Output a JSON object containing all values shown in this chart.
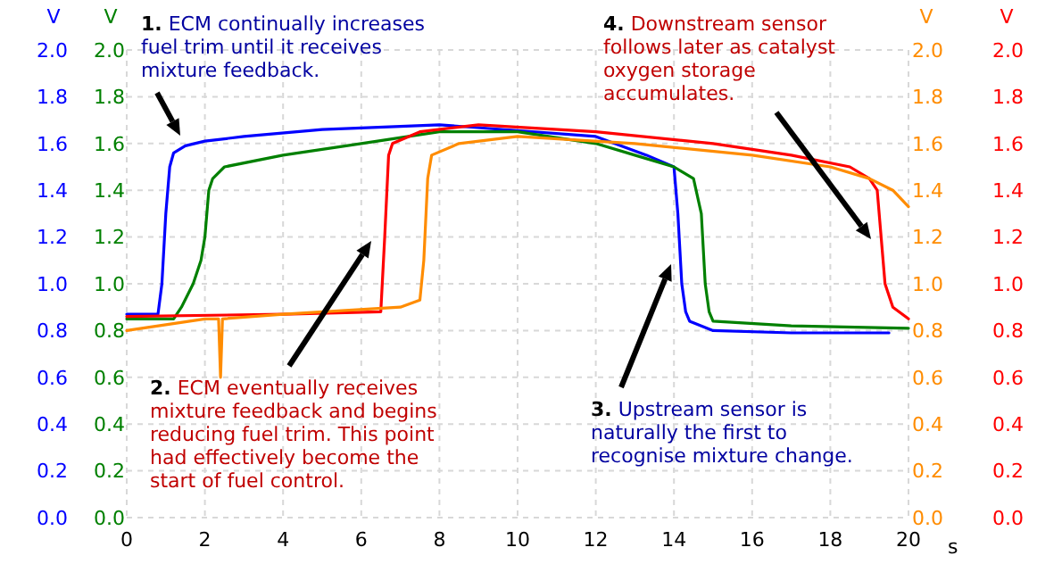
{
  "chart_data": {
    "type": "line",
    "xlabel": "s",
    "ylabel": "V",
    "y2label": "V",
    "y3label": "V",
    "xlim": [
      0,
      20
    ],
    "xticks": [
      0,
      2,
      4,
      6,
      8,
      10,
      12,
      14,
      16,
      18,
      20
    ],
    "ylim": [
      0,
      2
    ],
    "yticks": [
      {
        "value": 0,
        "label": "0.0"
      },
      {
        "value": 0.2,
        "label": "0.2"
      },
      {
        "value": 0.4,
        "label": "0.4"
      },
      {
        "value": 0.6,
        "label": "0.6"
      },
      {
        "value": 0.8,
        "label": "0.8"
      },
      {
        "value": 1,
        "label": "1.0"
      },
      {
        "value": 1.2,
        "label": "1.2"
      },
      {
        "value": 1.4,
        "label": "1.4"
      },
      {
        "value": 1.6,
        "label": "1.6"
      },
      {
        "value": 1.8,
        "label": "1.8"
      },
      {
        "value": 2,
        "label": "2.0"
      }
    ],
    "y2lim": [
      0,
      2
    ],
    "y2ticks": [
      {
        "value": 0,
        "label": "0.0"
      },
      {
        "value": 0.2,
        "label": "0.2"
      },
      {
        "value": 0.4,
        "label": "0.4"
      },
      {
        "value": 0.6,
        "label": "0.6"
      },
      {
        "value": 0.8,
        "label": "0.8"
      },
      {
        "value": 1,
        "label": "1.0"
      },
      {
        "value": 1.2,
        "label": "1.2"
      },
      {
        "value": 1.4,
        "label": "1.4"
      },
      {
        "value": 1.6,
        "label": "1.6"
      },
      {
        "value": 1.8,
        "label": "1.8"
      },
      {
        "value": 2,
        "label": "2.0"
      }
    ],
    "y3lim": [
      0,
      2
    ],
    "y3ticks": [
      {
        "value": 0,
        "label": "0.0"
      },
      {
        "value": 0.2,
        "label": "0.2"
      },
      {
        "value": 0.4,
        "label": "0.4"
      },
      {
        "value": 0.6,
        "label": "0.6"
      },
      {
        "value": 0.8,
        "label": "0.8"
      },
      {
        "value": 1,
        "label": "1.0"
      },
      {
        "value": 1.2,
        "label": "1.2"
      },
      {
        "value": 1.4,
        "label": "1.4"
      },
      {
        "value": 1.6,
        "label": "1.6"
      },
      {
        "value": 1.8,
        "label": "1.8"
      },
      {
        "value": 2,
        "label": "2.0"
      }
    ],
    "grid": true,
    "line_style": "solid",
    "marker": "none",
    "series": [
      {
        "color": "#0000ff",
        "x": [
          0,
          0.8,
          0.9,
          1.0,
          1.1,
          1.2,
          1.5,
          2,
          3,
          5,
          8,
          12,
          13.3,
          14,
          14.1,
          14.2,
          14.3,
          14.4,
          15,
          17,
          19.5
        ],
        "values": [
          0.87,
          0.87,
          1.0,
          1.3,
          1.5,
          1.56,
          1.59,
          1.61,
          1.63,
          1.66,
          1.68,
          1.63,
          1.55,
          1.5,
          1.3,
          1.0,
          0.88,
          0.84,
          0.8,
          0.79,
          0.79
        ]
      },
      {
        "color": "#008000",
        "axis": "y2",
        "x": [
          0,
          1.2,
          1.4,
          1.7,
          1.9,
          2.0,
          2.1,
          2.2,
          2.5,
          4,
          6,
          8,
          10,
          12,
          13,
          14,
          14.5,
          14.7,
          14.8,
          14.9,
          15,
          17,
          20
        ],
        "values": [
          0.85,
          0.85,
          0.9,
          1.0,
          1.1,
          1.2,
          1.4,
          1.45,
          1.5,
          1.55,
          1.6,
          1.65,
          1.65,
          1.6,
          1.55,
          1.5,
          1.45,
          1.3,
          1.0,
          0.88,
          0.84,
          0.82,
          0.81
        ]
      },
      {
        "color": "#ff0000",
        "axis": "y3",
        "x": [
          0,
          4,
          6.5,
          6.6,
          6.7,
          6.8,
          7.5,
          9,
          12,
          15,
          17,
          18.5,
          19,
          19.2,
          19.3,
          19.4,
          19.6,
          20
        ],
        "values": [
          0.86,
          0.87,
          0.88,
          1.2,
          1.55,
          1.6,
          1.65,
          1.68,
          1.65,
          1.6,
          1.55,
          1.5,
          1.45,
          1.4,
          1.2,
          1.0,
          0.9,
          0.85
        ]
      },
      {
        "color": "#ff8c00",
        "axis": "y3",
        "x": [
          0,
          2,
          2.35,
          2.4,
          2.45,
          4,
          7,
          7.5,
          7.6,
          7.7,
          7.8,
          8.5,
          10,
          13,
          16,
          18,
          19,
          19.6,
          20
        ],
        "values": [
          0.8,
          0.85,
          0.85,
          0.6,
          0.85,
          0.87,
          0.9,
          0.93,
          1.1,
          1.45,
          1.55,
          1.6,
          1.63,
          1.6,
          1.55,
          1.5,
          1.45,
          1.4,
          1.33
        ]
      }
    ],
    "annotations": [
      "1. ECM continually increases fuel trim until it receives mixture feedback.",
      "2. ECM eventually receives mixture feedback and begins reducing fuel trim. This point had effectively become the start of fuel control.",
      "3. Upstream sensor is naturally the first to recognise mixture change.",
      "4. Downstream sensor follows later as catalyst oxygen storage accumulates."
    ]
  }
}
